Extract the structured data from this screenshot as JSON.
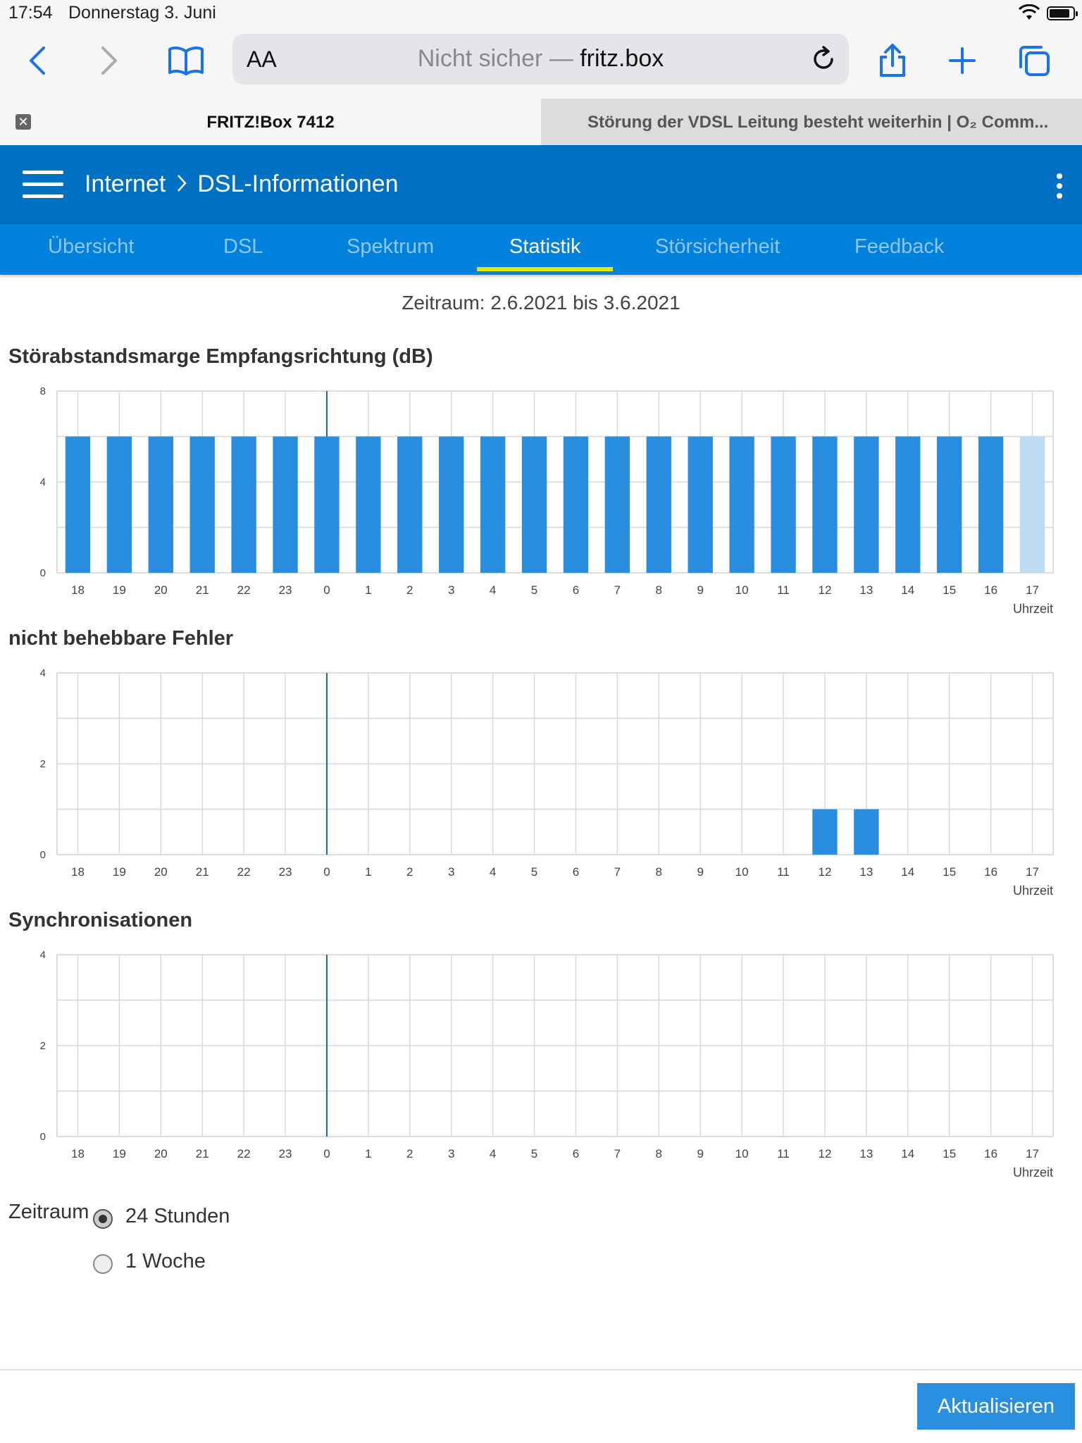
{
  "status": {
    "time": "17:54",
    "date": "Donnerstag 3. Juni"
  },
  "browser": {
    "text_size_label": "AA",
    "url_prefix": "Nicht sicher — ",
    "url_host": "fritz.box",
    "tabs": [
      {
        "title": "FRITZ!Box 7412",
        "active": true
      },
      {
        "title": "Störung der VDSL Leitung besteht weiterhin | O₂ Comm..."
      }
    ]
  },
  "header": {
    "section": "Internet",
    "page": "DSL-Informationen"
  },
  "nav": {
    "tabs": [
      "Übersicht",
      "DSL",
      "Spektrum",
      "Statistik",
      "Störsicherheit",
      "Feedback"
    ],
    "active": "Statistik"
  },
  "period": "Zeitraum: 2.6.2021 bis 3.6.2021",
  "chart_data": [
    {
      "type": "bar",
      "title": "Störabstandsmarge Empfangsrichtung (dB)",
      "categories": [
        "18",
        "19",
        "20",
        "21",
        "22",
        "23",
        "0",
        "1",
        "2",
        "3",
        "4",
        "5",
        "6",
        "7",
        "8",
        "9",
        "10",
        "11",
        "12",
        "13",
        "14",
        "15",
        "16",
        "17"
      ],
      "values": [
        6,
        6,
        6,
        6,
        6,
        6,
        6,
        6,
        6,
        6,
        6,
        6,
        6,
        6,
        6,
        6,
        6,
        6,
        6,
        6,
        6,
        6,
        6,
        6
      ],
      "highlight_last": true,
      "xlabel": "Uhrzeit",
      "ylim": [
        0,
        8
      ],
      "yticks": [
        0,
        4,
        8
      ],
      "day_boundary": "0",
      "grid": true,
      "color": "#2a8ee0",
      "current_color": "#bddbf3"
    },
    {
      "type": "bar",
      "title": "nicht behebbare Fehler",
      "categories": [
        "18",
        "19",
        "20",
        "21",
        "22",
        "23",
        "0",
        "1",
        "2",
        "3",
        "4",
        "5",
        "6",
        "7",
        "8",
        "9",
        "10",
        "11",
        "12",
        "13",
        "14",
        "15",
        "16",
        "17"
      ],
      "values": [
        0,
        0,
        0,
        0,
        0,
        0,
        0,
        0,
        0,
        0,
        0,
        0,
        0,
        0,
        0,
        0,
        0,
        0,
        1,
        1,
        0,
        0,
        0,
        0
      ],
      "xlabel": "Uhrzeit",
      "ylim": [
        0,
        4
      ],
      "yticks": [
        0,
        2,
        4
      ],
      "day_boundary": "0",
      "grid": true,
      "color": "#2a8ee0"
    },
    {
      "type": "bar",
      "title": "Synchronisationen",
      "categories": [
        "18",
        "19",
        "20",
        "21",
        "22",
        "23",
        "0",
        "1",
        "2",
        "3",
        "4",
        "5",
        "6",
        "7",
        "8",
        "9",
        "10",
        "11",
        "12",
        "13",
        "14",
        "15",
        "16",
        "17"
      ],
      "values": [
        0,
        0,
        0,
        0,
        0,
        0,
        0,
        0,
        0,
        0,
        0,
        0,
        0,
        0,
        0,
        0,
        0,
        0,
        0,
        0,
        0,
        0,
        0,
        0
      ],
      "xlabel": "Uhrzeit",
      "ylim": [
        0,
        4
      ],
      "yticks": [
        0,
        2,
        4
      ],
      "day_boundary": "0",
      "grid": true,
      "color": "#2a8ee0"
    }
  ],
  "timespan": {
    "label": "Zeitraum",
    "options": [
      {
        "label": "24 Stunden",
        "checked": true
      },
      {
        "label": "1 Woche",
        "checked": false
      }
    ]
  },
  "refresh_button": "Aktualisieren"
}
